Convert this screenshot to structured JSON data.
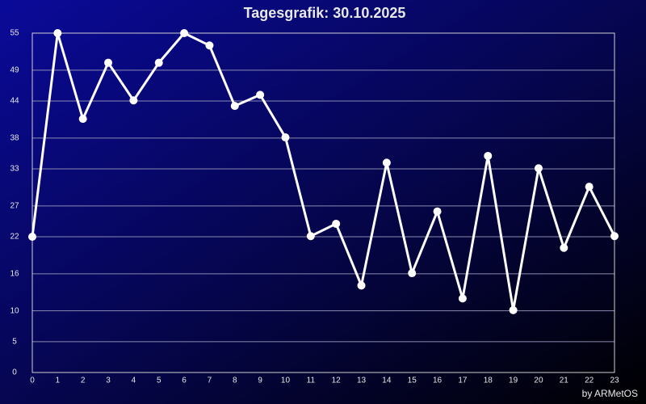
{
  "chart_data": {
    "type": "line",
    "title": "Tagesgrafik: 30.10.2025",
    "credit": "by ARMetOS",
    "x": [
      0,
      1,
      2,
      3,
      4,
      5,
      6,
      7,
      8,
      9,
      10,
      11,
      12,
      13,
      14,
      15,
      16,
      17,
      18,
      19,
      20,
      21,
      22,
      23
    ],
    "xlim": [
      0,
      23
    ],
    "series": [
      {
        "color": "#ffffff",
        "values": [
          22,
          55,
          41.1,
          50.2,
          44.1,
          50.2,
          55,
          53,
          43.2,
          45,
          38.1,
          22.1,
          24.1,
          14.1,
          34,
          16.1,
          26.1,
          12,
          35.1,
          10.1,
          33.1,
          20.2,
          30.1,
          22.1
        ]
      }
    ],
    "ylim": [
      0,
      55
    ],
    "yticks": [
      0,
      5,
      10,
      16,
      22,
      27,
      33,
      38,
      44,
      49,
      55
    ],
    "grid": true
  }
}
